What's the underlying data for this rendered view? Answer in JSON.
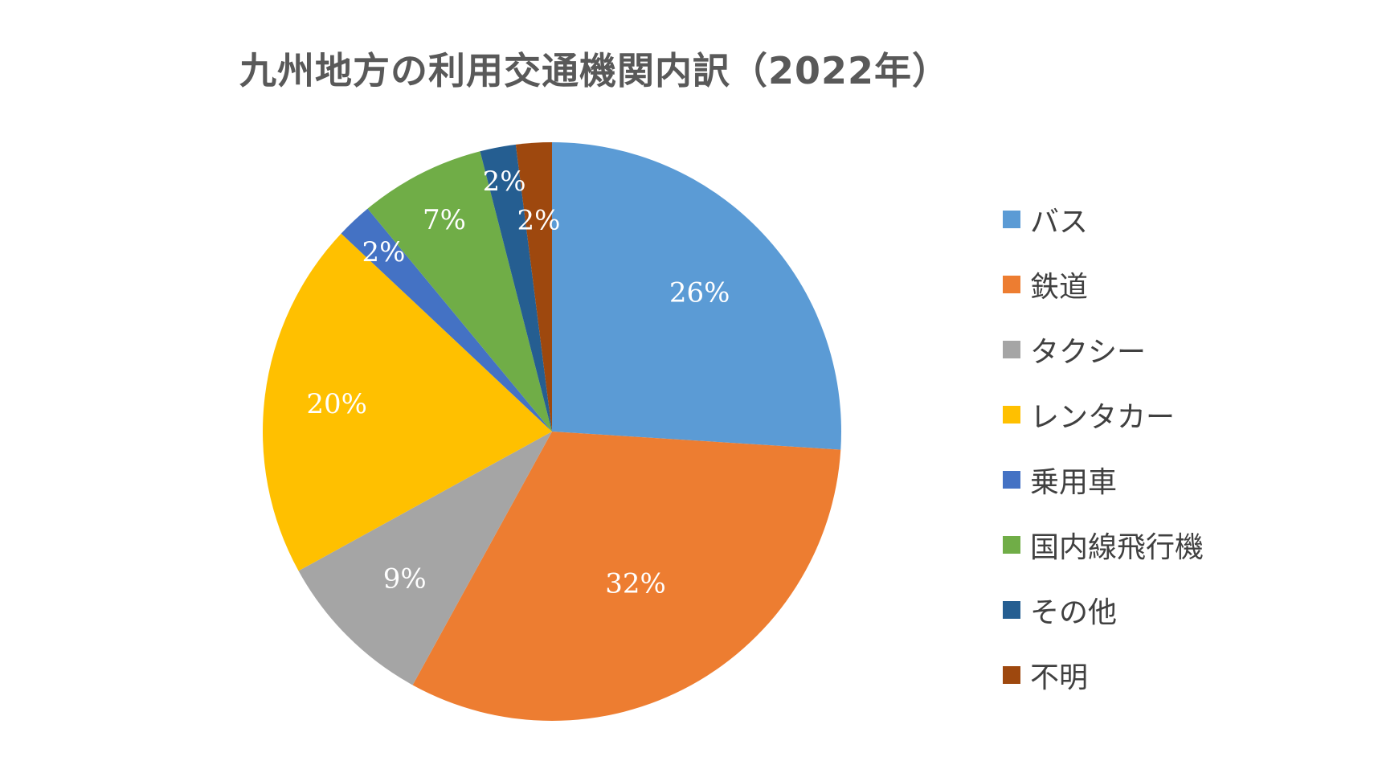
{
  "chart_data": {
    "type": "pie",
    "title": "九州地方の利用交通機関内訳（2022年）",
    "categories": [
      "バス",
      "鉄道",
      "タクシー",
      "レンタカー",
      "乗用車",
      "国内線飛行機",
      "その他",
      "不明"
    ],
    "values": [
      26,
      32,
      9,
      20,
      2,
      7,
      2,
      2
    ],
    "value_labels": [
      "26%",
      "32%",
      "9%",
      "20%",
      "2%",
      "7%",
      "2%",
      "2%"
    ],
    "colors": [
      "#5B9BD5",
      "#ED7D31",
      "#A5A5A5",
      "#FFC000",
      "#4472C4",
      "#70AD47",
      "#255E91",
      "#9E480E"
    ],
    "legend_position": "right",
    "start_angle": "12 o'clock",
    "direction": "clockwise"
  }
}
